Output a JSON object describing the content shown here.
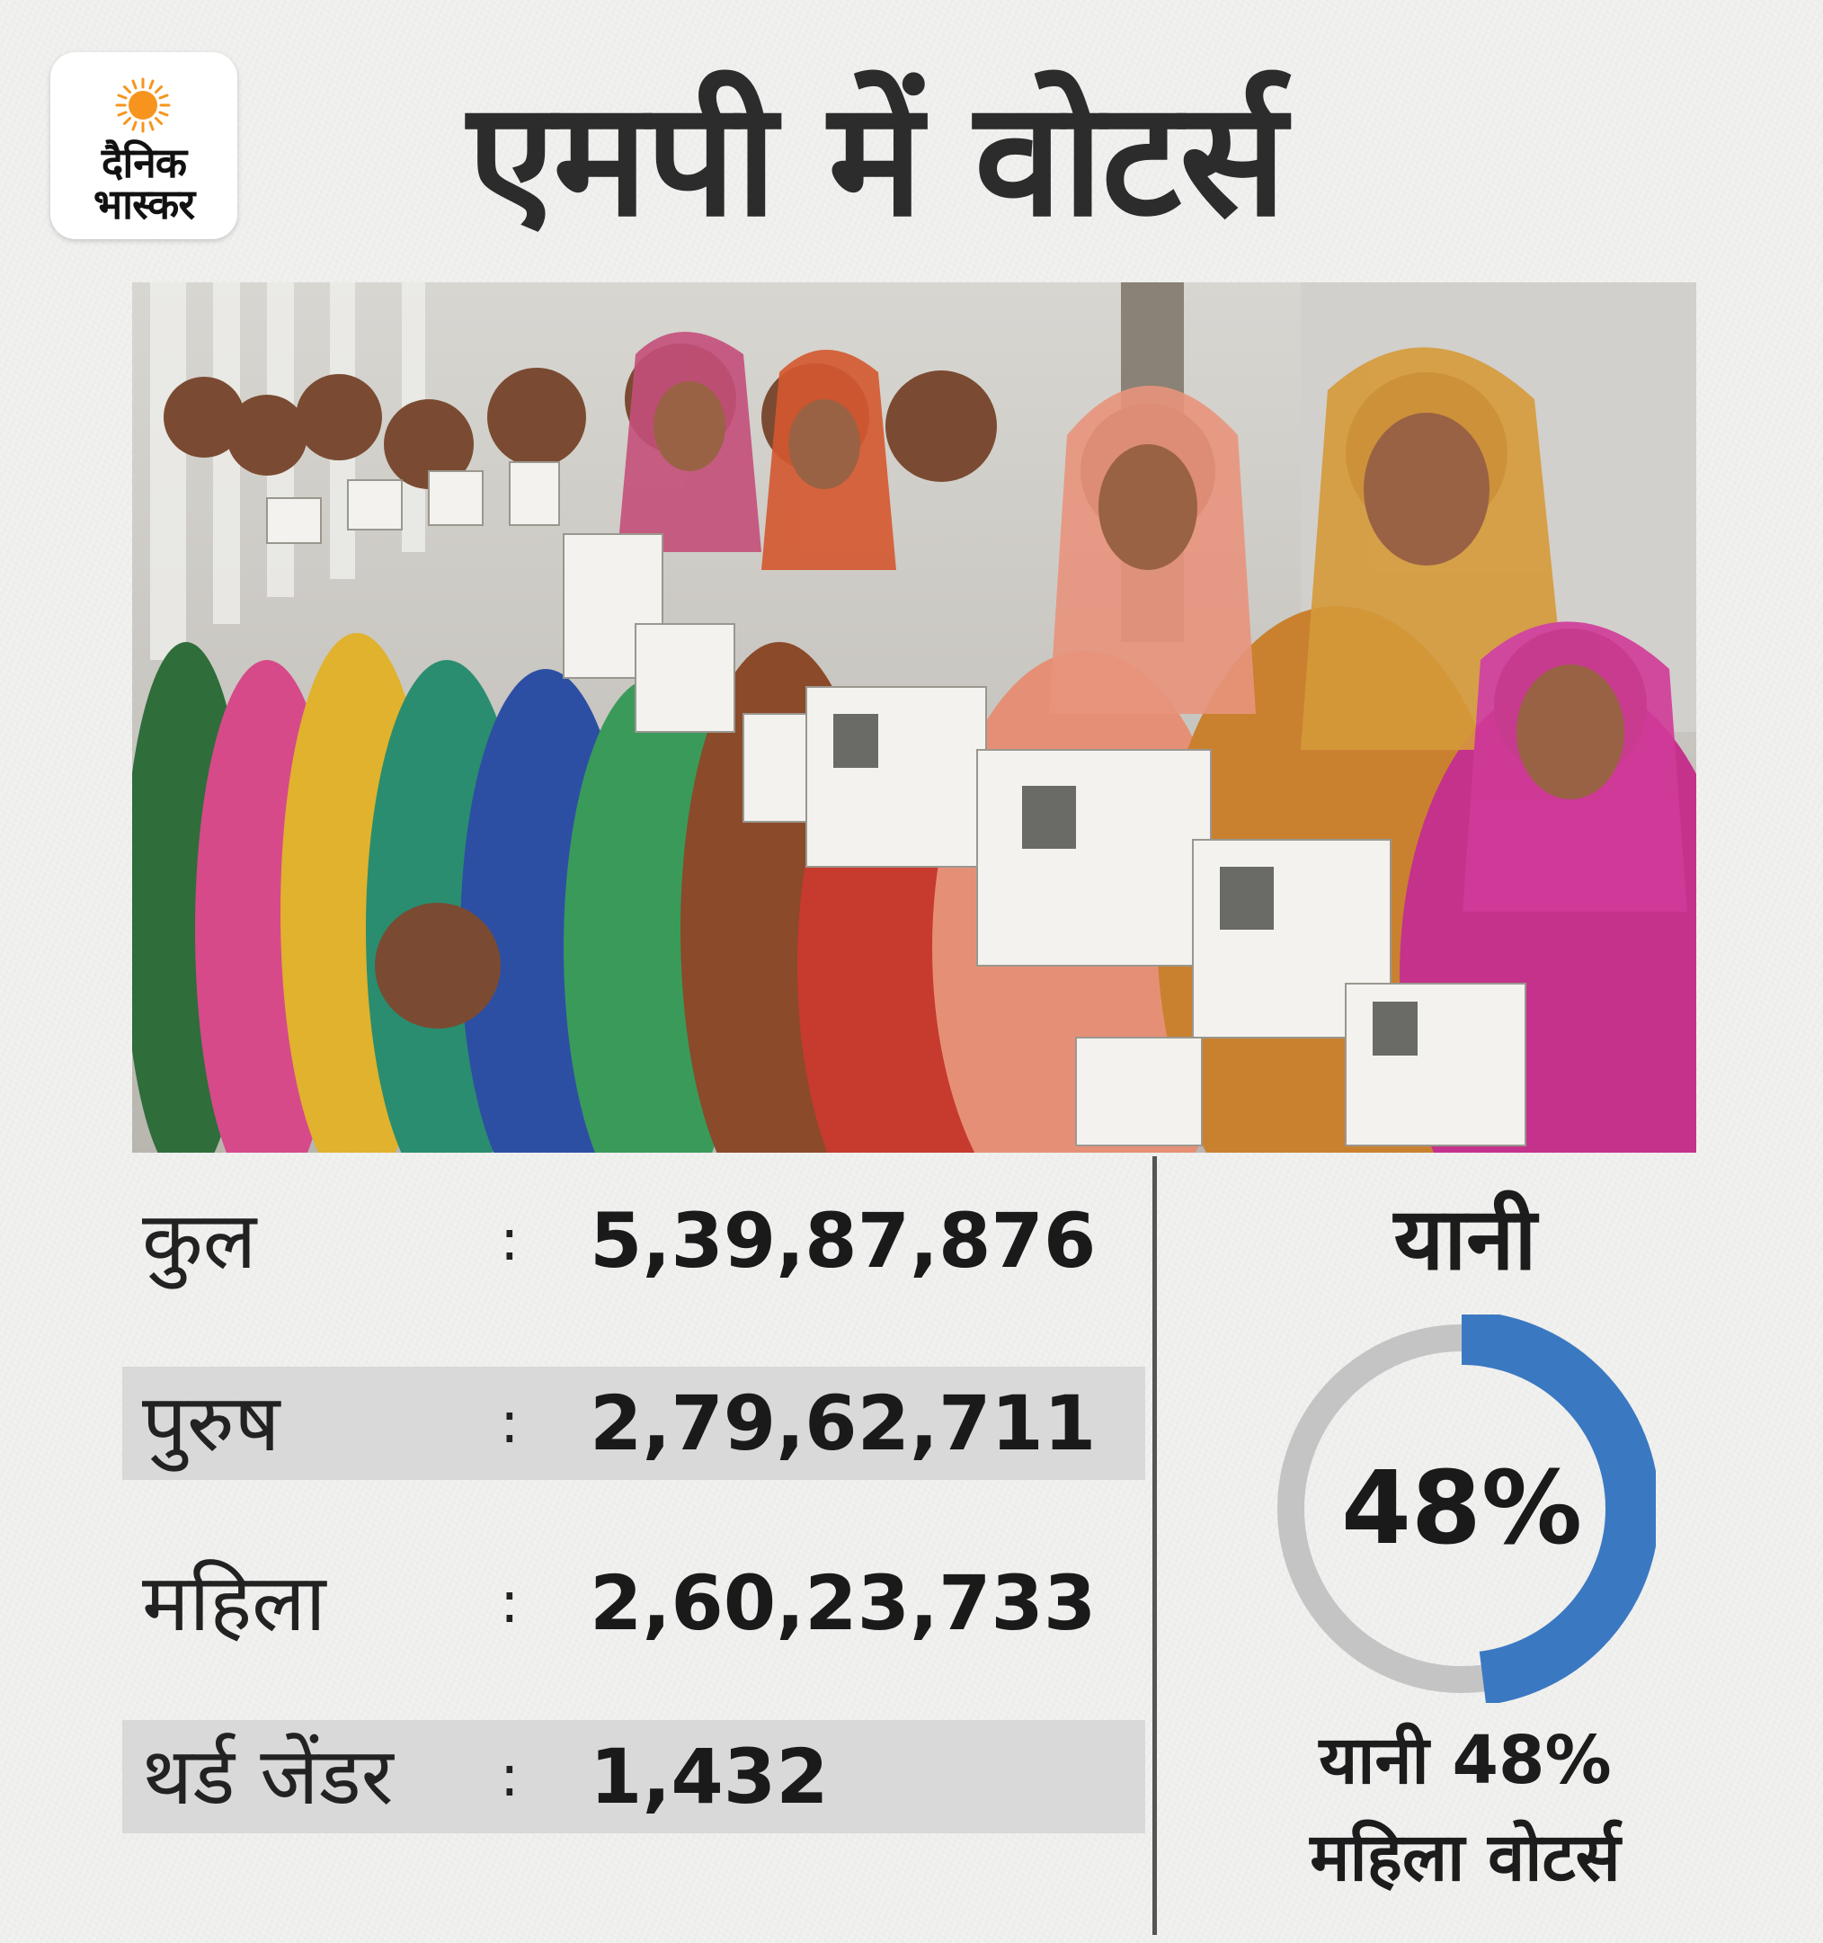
{
  "logo": {
    "line1": "दैनिक",
    "line2": "भास्कर",
    "sun_color": "#f7941d"
  },
  "title": "एमपी में वोटर्स",
  "photo": {
    "icon": "women-voters-holding-id-cards-photo"
  },
  "stats": [
    {
      "label": "कुल",
      "colon": ":",
      "value": "5,39,87,876",
      "shaded": false
    },
    {
      "label": "पुरुष",
      "colon": ":",
      "value": "2,79,62,711",
      "shaded": true
    },
    {
      "label": "महिला",
      "colon": ":",
      "value": "2,60,23,733",
      "shaded": false
    },
    {
      "label": "थर्ड जेंडर",
      "colon": ":",
      "value": "1,432",
      "shaded": true
    }
  ],
  "summary": {
    "heading": "यानी",
    "percent_label": "48%",
    "percent_value": 48,
    "line1": "यानी 48%",
    "line2": "महिला वोटर्स",
    "colors": {
      "filled": "#3b78c2",
      "remaining": "#c4c4c4"
    }
  }
}
